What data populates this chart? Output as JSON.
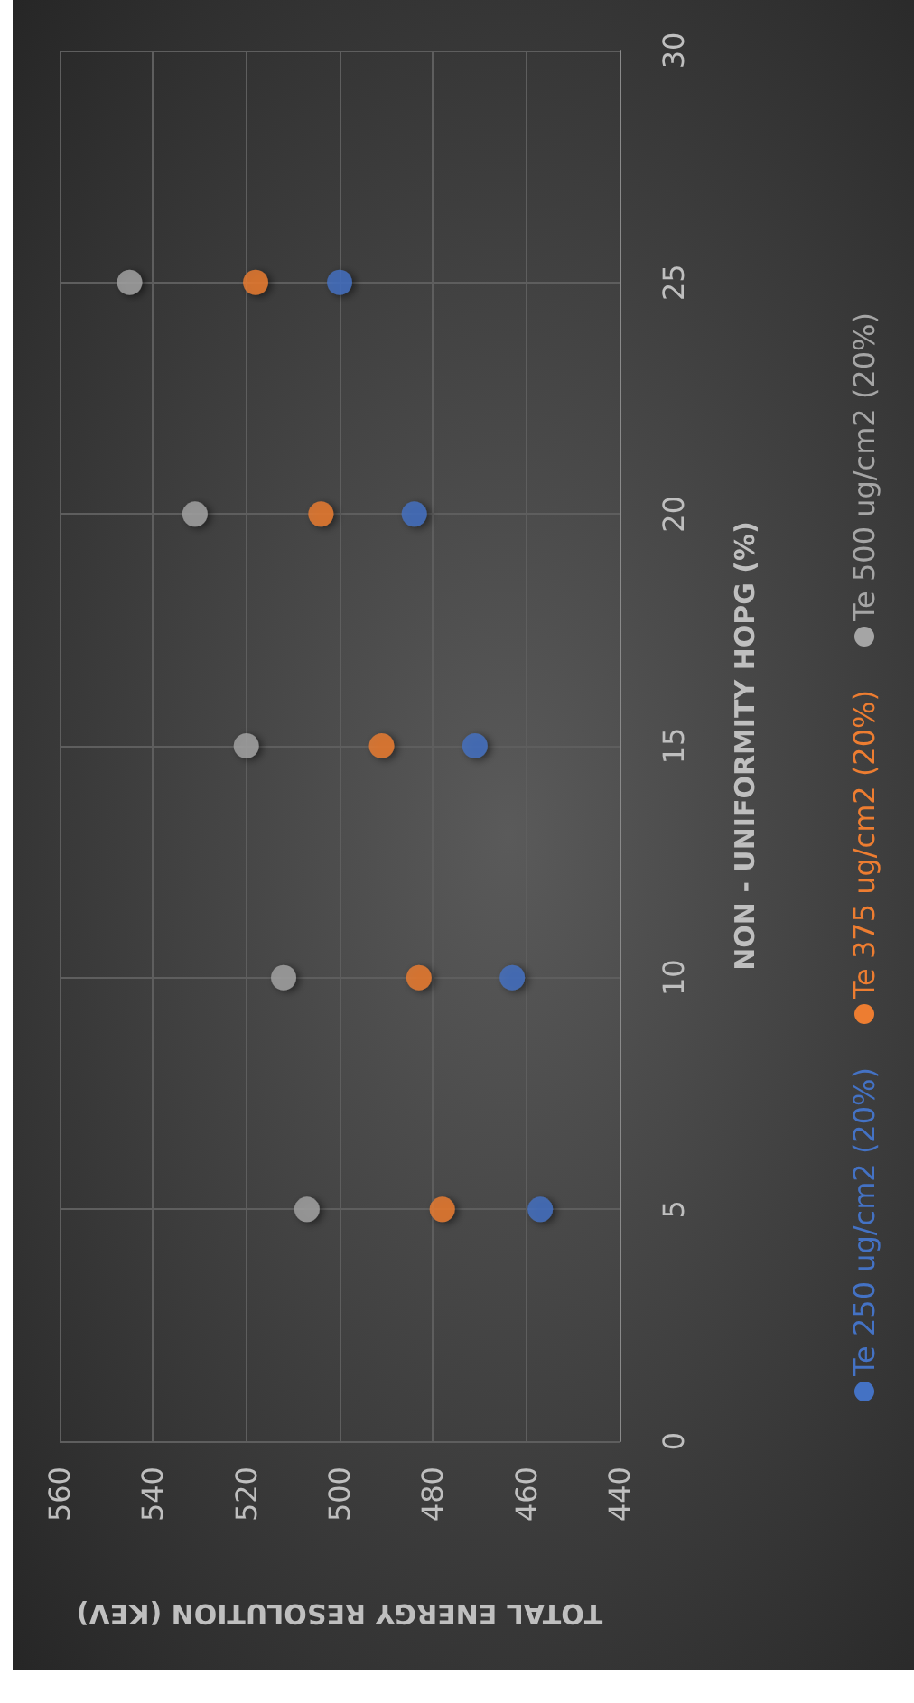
{
  "chart_data": {
    "type": "scatter",
    "xlabel": "TOTAL ENERGY RESOLUTION (KEV)",
    "ylabel": "NON - UNIFORMITY HOPG (%)",
    "series": [
      {
        "name": "Te 250 ug/cm2 (20%)",
        "color": "#4472c4",
        "x": [
          457,
          463,
          471,
          484,
          500
        ],
        "values": [
          5,
          10,
          15,
          20,
          25
        ]
      },
      {
        "name": "Te 375 ug/cm2 (20%)",
        "color": "#ed7d31",
        "x": [
          478,
          483,
          491,
          504,
          518
        ],
        "values": [
          5,
          10,
          15,
          20,
          25
        ]
      },
      {
        "name": "Te 500 ug/cm2 (20%)",
        "color": "#a5a5a5",
        "x": [
          507,
          512,
          520,
          531,
          545
        ],
        "values": [
          5,
          10,
          15,
          20,
          25
        ]
      }
    ],
    "xlim": [
      560,
      440
    ],
    "xticks": [
      560,
      540,
      520,
      500,
      480,
      460,
      440
    ],
    "ylim": [
      0,
      30
    ],
    "yticks": [
      0,
      5,
      10,
      15,
      20,
      25,
      30
    ],
    "grid": true,
    "legend": "right",
    "marker": "circle"
  }
}
